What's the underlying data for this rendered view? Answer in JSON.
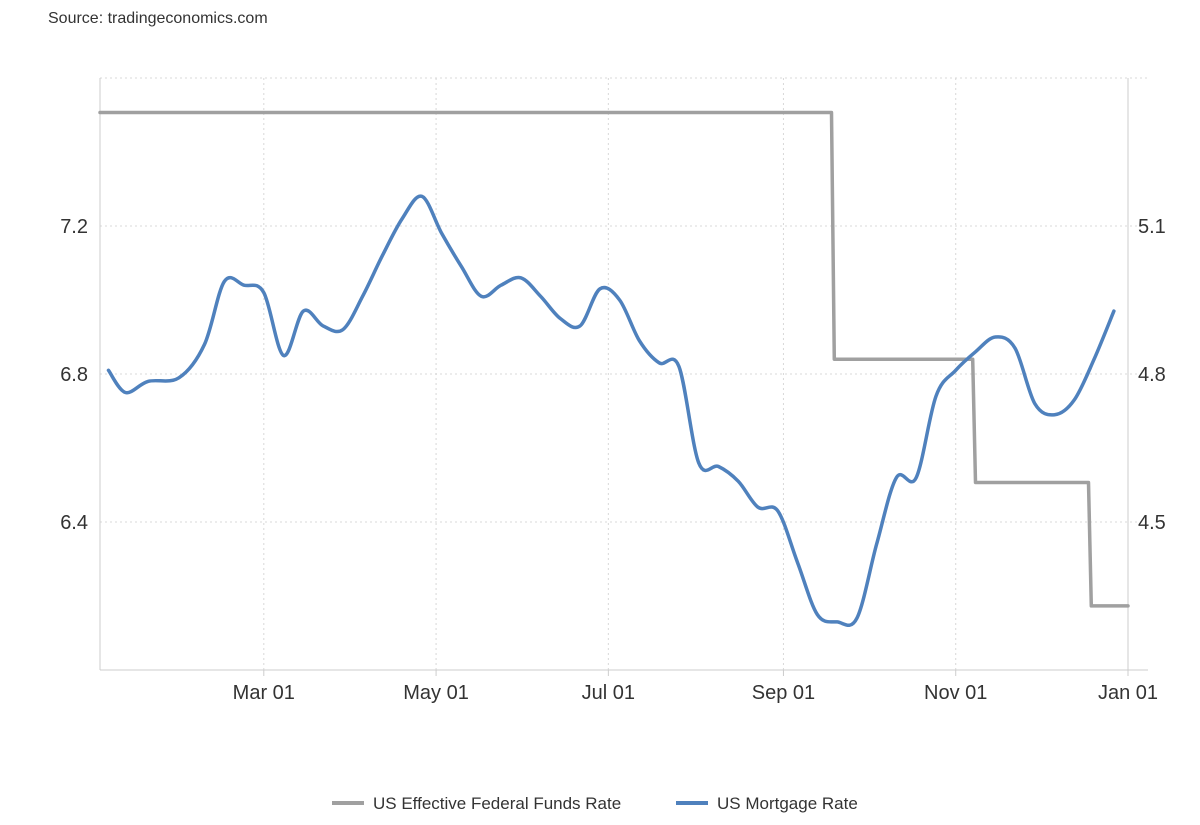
{
  "source_label": "Source: tradingeconomics.com",
  "colors": {
    "fed": "#a0a0a0",
    "mortgage": "#4f81bd",
    "grid": "#d8d8d8",
    "axis": "#cccccc",
    "text": "#333333"
  },
  "chart_data": {
    "type": "line",
    "x_axis": {
      "type": "date",
      "min": "2024-01-03",
      "max": "2025-01-01",
      "ticks": [
        "2024-03-01",
        "2024-05-01",
        "2024-07-01",
        "2024-09-01",
        "2024-11-01",
        "2025-01-01"
      ],
      "tick_labels": [
        "Mar 01",
        "May 01",
        "Jul 01",
        "Sep 01",
        "Nov 01",
        "Jan 01"
      ]
    },
    "y_left": {
      "min": 6.0,
      "max": 7.6,
      "ticks": [
        6.4,
        6.8,
        7.2
      ],
      "tick_labels": [
        "6.4",
        "6.8",
        "7.2"
      ]
    },
    "y_right": {
      "min": 4.2,
      "max": 5.4,
      "ticks": [
        4.5,
        4.8,
        5.1
      ],
      "tick_labels": [
        "4.5",
        "4.8",
        "5.1"
      ]
    },
    "grid": true,
    "legend_position": "bottom-center",
    "series": [
      {
        "name": "US Effective Federal Funds Rate",
        "axis": "right",
        "step": true,
        "points": [
          [
            "2024-01-03",
            5.33
          ],
          [
            "2024-09-18",
            5.33
          ],
          [
            "2024-09-19",
            4.83
          ],
          [
            "2024-11-07",
            4.83
          ],
          [
            "2024-11-08",
            4.58
          ],
          [
            "2024-12-18",
            4.58
          ],
          [
            "2024-12-19",
            4.33
          ],
          [
            "2025-01-01",
            4.33
          ]
        ]
      },
      {
        "name": "US Mortgage Rate",
        "axis": "left",
        "step": false,
        "points": [
          [
            "2024-01-06",
            6.81
          ],
          [
            "2024-01-12",
            6.75
          ],
          [
            "2024-01-20",
            6.78
          ],
          [
            "2024-01-31",
            6.79
          ],
          [
            "2024-02-09",
            6.88
          ],
          [
            "2024-02-16",
            7.05
          ],
          [
            "2024-02-23",
            7.04
          ],
          [
            "2024-03-01",
            7.02
          ],
          [
            "2024-03-08",
            6.85
          ],
          [
            "2024-03-15",
            6.97
          ],
          [
            "2024-03-22",
            6.93
          ],
          [
            "2024-03-29",
            6.92
          ],
          [
            "2024-04-05",
            7.01
          ],
          [
            "2024-04-12",
            7.12
          ],
          [
            "2024-04-19",
            7.22
          ],
          [
            "2024-04-26",
            7.28
          ],
          [
            "2024-05-03",
            7.18
          ],
          [
            "2024-05-10",
            7.09
          ],
          [
            "2024-05-17",
            7.01
          ],
          [
            "2024-05-24",
            7.04
          ],
          [
            "2024-05-31",
            7.06
          ],
          [
            "2024-06-07",
            7.01
          ],
          [
            "2024-06-14",
            6.95
          ],
          [
            "2024-06-21",
            6.93
          ],
          [
            "2024-06-28",
            7.03
          ],
          [
            "2024-07-05",
            7.0
          ],
          [
            "2024-07-12",
            6.89
          ],
          [
            "2024-07-19",
            6.83
          ],
          [
            "2024-07-26",
            6.82
          ],
          [
            "2024-08-02",
            6.56
          ],
          [
            "2024-08-09",
            6.55
          ],
          [
            "2024-08-16",
            6.51
          ],
          [
            "2024-08-23",
            6.44
          ],
          [
            "2024-08-30",
            6.43
          ],
          [
            "2024-09-06",
            6.29
          ],
          [
            "2024-09-13",
            6.15
          ],
          [
            "2024-09-20",
            6.13
          ],
          [
            "2024-09-27",
            6.14
          ],
          [
            "2024-10-04",
            6.34
          ],
          [
            "2024-10-11",
            6.52
          ],
          [
            "2024-10-18",
            6.52
          ],
          [
            "2024-10-25",
            6.74
          ],
          [
            "2024-11-01",
            6.81
          ],
          [
            "2024-11-08",
            6.86
          ],
          [
            "2024-11-15",
            6.9
          ],
          [
            "2024-11-22",
            6.87
          ],
          [
            "2024-11-29",
            6.72
          ],
          [
            "2024-12-06",
            6.69
          ],
          [
            "2024-12-13",
            6.73
          ],
          [
            "2024-12-20",
            6.84
          ],
          [
            "2024-12-27",
            6.97
          ]
        ]
      }
    ]
  }
}
